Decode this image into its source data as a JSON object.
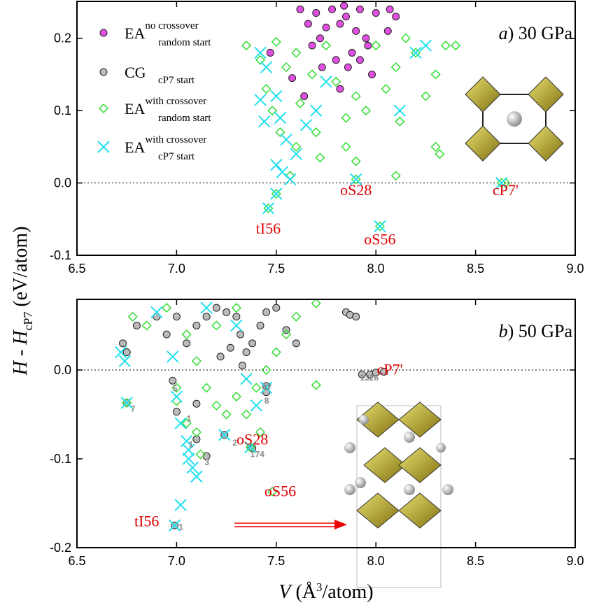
{
  "chart_data": [
    {
      "type": "scatter",
      "panel_letter": "a",
      "panel_text": ") 30 GPa",
      "xlim": [
        6.5,
        9.0
      ],
      "ylim": [
        -0.1,
        0.251
      ],
      "xticks": [
        {
          "value": 6.5,
          "label": "6.5"
        },
        {
          "value": 7.0,
          "label": "7.0"
        },
        {
          "value": 7.5,
          "label": "7.5"
        },
        {
          "value": 8.0,
          "label": "8.0"
        },
        {
          "value": 8.5,
          "label": "8.5"
        },
        {
          "value": 9.0,
          "label": "9.0"
        }
      ],
      "yticks": [
        -0.1,
        {
          "value": 0,
          "label": "0.0"
        },
        0.1,
        0.2
      ],
      "series": [
        {
          "name": "EA",
          "sup": "no crossover",
          "sub": "random start",
          "color": "#e050e0",
          "marker": "circle",
          "x": [
            7.62,
            7.7,
            7.78,
            7.85,
            7.92,
            8.0,
            8.07,
            7.66,
            7.75,
            7.82,
            7.9,
            7.95,
            7.88,
            7.8,
            7.86,
            7.92,
            7.98,
            7.72,
            7.68,
            7.58,
            7.64,
            7.73,
            7.96,
            7.82,
            7.47,
            8.06,
            7.84,
            8.1
          ],
          "y": [
            0.24,
            0.235,
            0.24,
            0.23,
            0.24,
            0.235,
            0.24,
            0.22,
            0.215,
            0.22,
            0.21,
            0.2,
            0.18,
            0.17,
            0.16,
            0.17,
            0.15,
            0.2,
            0.19,
            0.145,
            0.12,
            0.16,
            0.19,
            0.13,
            0.18,
            0.21,
            0.245,
            0.23
          ]
        },
        {
          "name": "CG",
          "sub": "cP7 start",
          "color": "#bbbbbb",
          "marker": "circle",
          "x": [],
          "y": []
        },
        {
          "name": "EA",
          "sup": "with crossover",
          "sub": "random start",
          "color": "#33dd33",
          "marker": "diamond",
          "x": [
            7.35,
            7.42,
            7.5,
            7.55,
            7.6,
            7.68,
            7.75,
            7.8,
            7.9,
            8.0,
            8.1,
            8.2,
            8.3,
            8.35,
            8.25,
            8.12,
            7.95,
            7.85,
            7.7,
            7.6,
            7.52,
            7.48,
            7.45,
            7.62,
            8.05,
            8.15,
            8.4,
            8.3,
            8.32,
            7.72,
            7.9,
            7.57,
            7.9,
            8.63,
            8.65,
            7.5,
            7.46,
            8.02,
            8.1,
            7.85
          ],
          "y": [
            0.19,
            0.17,
            0.195,
            0.16,
            0.18,
            0.15,
            0.19,
            0.14,
            0.12,
            0.19,
            0.16,
            0.18,
            0.15,
            0.19,
            0.12,
            0.085,
            0.1,
            0.09,
            0.07,
            0.05,
            0.07,
            0.1,
            0.13,
            0.11,
            0.13,
            0.2,
            0.19,
            0.05,
            0.04,
            0.035,
            0.03,
            0.01,
            0.005,
            0.0,
            0.0,
            -0.015,
            -0.035,
            -0.06,
            0.01,
            0.05
          ]
        },
        {
          "name": "EA",
          "sup": "with crossover",
          "sub": "cP7 start",
          "color": "#22e0ee",
          "marker": "cross",
          "x": [
            7.42,
            7.45,
            7.5,
            7.52,
            7.55,
            7.6,
            7.5,
            7.53,
            7.57,
            7.65,
            7.7,
            7.75,
            8.2,
            8.25,
            8.12,
            7.9,
            7.5,
            7.46,
            8.02,
            8.63,
            7.44,
            7.42
          ],
          "y": [
            0.18,
            0.16,
            0.12,
            0.09,
            0.06,
            0.04,
            0.025,
            0.015,
            0.005,
            0.08,
            0.1,
            0.14,
            0.18,
            0.19,
            0.1,
            0.005,
            -0.015,
            -0.035,
            -0.06,
            0.0,
            0.085,
            0.115
          ]
        }
      ],
      "phase_labels": [
        "tI56",
        "oS28",
        "oS56",
        "cP7'"
      ]
    },
    {
      "type": "scatter",
      "panel_letter": "b",
      "panel_text": ") 50 GPa",
      "xlim": [
        6.5,
        9.0
      ],
      "ylim": [
        -0.2,
        0.0795
      ],
      "xticks": [
        {
          "value": 6.5,
          "label": "6.5"
        },
        {
          "value": 7.0,
          "label": "7.0"
        },
        {
          "value": 7.5,
          "label": "7.5"
        },
        {
          "value": 8.0,
          "label": "8.0"
        },
        {
          "value": 8.5,
          "label": "8.5"
        },
        {
          "value": 9.0,
          "label": "9.0"
        }
      ],
      "yticks": [
        -0.2,
        -0.1,
        {
          "value": 0,
          "label": "0.0"
        }
      ],
      "series": [
        {
          "color": "#bbbbbb",
          "marker": "circle",
          "x": [
            6.73,
            6.75,
            6.8,
            6.9,
            6.95,
            7.0,
            7.05,
            7.1,
            7.15,
            7.2,
            7.25,
            7.3,
            7.32,
            7.35,
            7.33,
            7.38,
            7.42,
            7.45,
            7.5,
            7.55,
            7.6,
            7.85,
            7.87,
            7.9,
            7.93,
            7.97,
            8.0,
            8.04,
            7.45,
            7.45,
            6.75,
            6.98,
            7.0,
            7.1,
            7.1,
            7.15,
            7.24,
            7.37,
            7.38,
            6.99,
            7.22,
            7.27
          ],
          "y": [
            0.03,
            0.02,
            0.05,
            0.06,
            0.04,
            0.06,
            0.03,
            0.05,
            0.06,
            0.07,
            0.065,
            0.06,
            0.04,
            0.02,
            0.005,
            0.03,
            0.05,
            0.065,
            0.07,
            0.045,
            0.03,
            0.065,
            0.062,
            0.06,
            -0.005,
            -0.005,
            -0.003,
            -0.002,
            -0.025,
            -0.018,
            -0.037,
            -0.012,
            -0.047,
            -0.038,
            -0.078,
            -0.097,
            -0.073,
            -0.087,
            -0.088,
            -0.175,
            0.015,
            0.025
          ]
        },
        {
          "color": "#33dd33",
          "marker": "diamond",
          "x": [
            6.78,
            6.85,
            6.95,
            7.05,
            7.1,
            7.15,
            7.2,
            7.25,
            7.3,
            7.35,
            7.4,
            7.45,
            7.5,
            7.55,
            7.6,
            7.7,
            7.7,
            7.0,
            7.05,
            7.1,
            7.0,
            7.12,
            7.42,
            7.48,
            7.37,
            6.75,
            7.2,
            7.3
          ],
          "y": [
            0.06,
            0.05,
            0.07,
            0.04,
            0.01,
            -0.02,
            -0.04,
            -0.05,
            -0.03,
            -0.05,
            -0.02,
            0.0,
            0.02,
            0.04,
            0.06,
            0.075,
            -0.017,
            -0.02,
            -0.06,
            -0.07,
            -0.035,
            -0.095,
            -0.07,
            -0.137,
            -0.087,
            -0.037,
            0.05,
            0.07
          ]
        },
        {
          "color": "#22e0ee",
          "marker": "cross",
          "x": [
            6.74,
            6.72,
            6.98,
            7.0,
            7.02,
            7.05,
            7.06,
            7.08,
            7.1,
            7.06,
            7.02,
            6.99,
            6.75,
            7.24,
            7.37,
            7.45,
            7.35,
            7.3,
            6.9,
            7.15,
            7.4
          ],
          "y": [
            0.01,
            0.02,
            0.015,
            -0.03,
            -0.06,
            -0.08,
            -0.1,
            -0.11,
            -0.12,
            -0.09,
            -0.152,
            -0.175,
            -0.037,
            -0.073,
            -0.087,
            -0.02,
            -0.01,
            0.05,
            0.065,
            0.07,
            -0.04
          ]
        }
      ],
      "phase_labels": [
        "tI56",
        "oS28",
        "oS56",
        "cP7'"
      ],
      "count_labels": [
        "5",
        "7",
        "1",
        "1",
        "3",
        "2",
        "174",
        "1326",
        "47",
        "8",
        "1"
      ]
    }
  ],
  "y_label": {
    "main": "H - H",
    "sub": "cP7",
    "unit": " (eV/atom)"
  },
  "x_label": {
    "main": "V",
    "unit_start": " (Å",
    "sup": "3",
    "unit_end": "/atom)"
  }
}
